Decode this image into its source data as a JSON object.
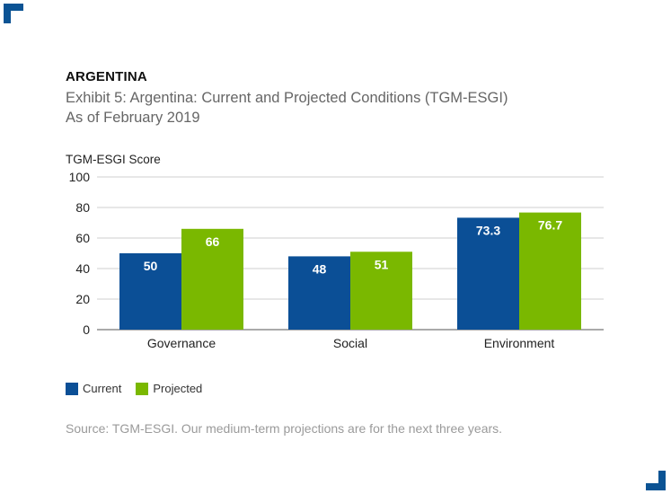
{
  "header": {
    "country": "ARGENTINA",
    "exhibit_title": "Exhibit 5: Argentina: Current and Projected Conditions (TGM-ESGI) As of February 2019"
  },
  "chart_data": {
    "type": "bar",
    "title": "Exhibit 5: Argentina: Current and Projected Conditions (TGM-ESGI) As of February 2019",
    "ylabel": "TGM-ESGI Score",
    "xlabel": "",
    "ylim": [
      0,
      100
    ],
    "yticks": [
      0,
      20,
      40,
      60,
      80,
      100
    ],
    "grid": true,
    "categories": [
      "Governance",
      "Social",
      "Environment"
    ],
    "series": [
      {
        "name": "Current",
        "values": [
          50,
          48,
          73.3
        ],
        "labels": [
          "50",
          "48",
          "73.3"
        ],
        "color": "#0b4f96"
      },
      {
        "name": "Projected",
        "values": [
          66,
          51,
          76.7
        ],
        "labels": [
          "66",
          "51",
          "76.7"
        ],
        "color": "#7ab800"
      }
    ],
    "legend_position": "bottom-left"
  },
  "legend": {
    "current_label": "Current",
    "projected_label": "Projected"
  },
  "colors": {
    "current": "#0b4f96",
    "projected": "#7ab800",
    "accent": "#0b5394"
  },
  "footer": {
    "source": "Source: TGM-ESGI. Our medium-term projections are for the next three years."
  }
}
